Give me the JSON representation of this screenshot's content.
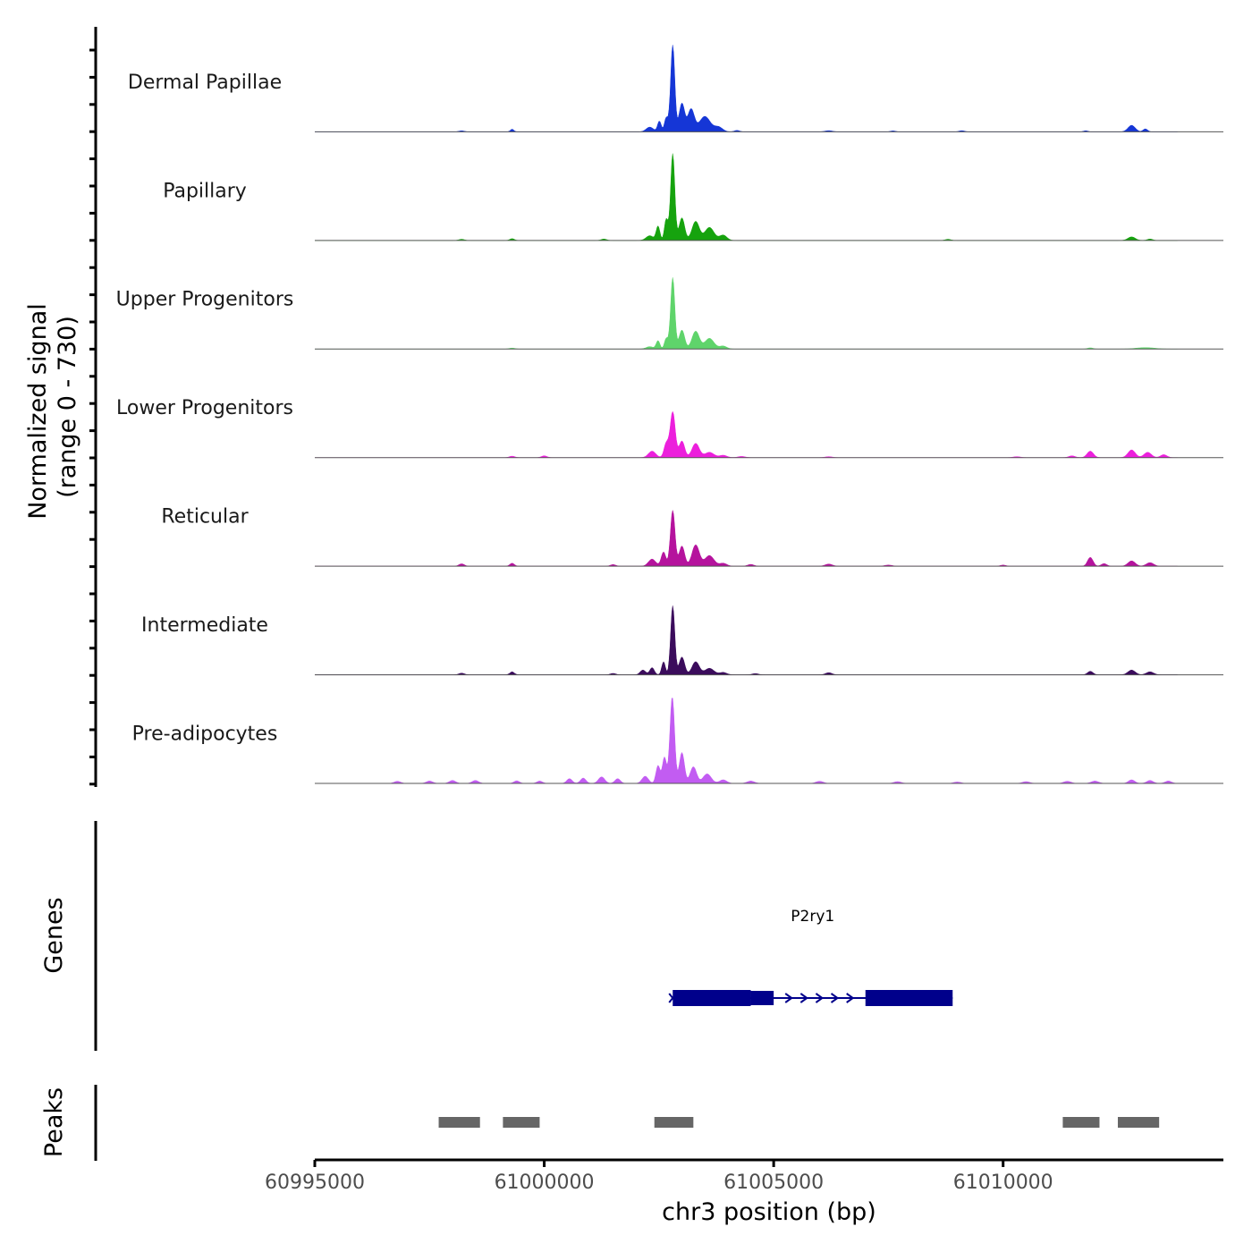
{
  "chart_data": {
    "type": "area",
    "chromosome": "chr3",
    "xlabel": "chr3 position (bp)",
    "ylabel_line1": "Normalized signal",
    "ylabel_line2": "(range 0 - 730)",
    "signal_range": [
      0,
      730
    ],
    "xlim": [
      60995000,
      61014800
    ],
    "x_ticks": [
      60995000,
      61000000,
      61005000,
      61010000
    ],
    "x_tick_labels": [
      "60995000",
      "61000000",
      "61005000",
      "61010000"
    ],
    "tracks": [
      {
        "name": "Dermal Papillae",
        "color": "#1536d6",
        "peaks": [
          [
            61002800,
            730,
            45
          ],
          [
            61002660,
            120,
            40
          ],
          [
            61002510,
            90,
            40
          ],
          [
            61003000,
            240,
            60
          ],
          [
            61003200,
            190,
            70
          ],
          [
            61003500,
            130,
            120
          ],
          [
            61003800,
            40,
            90
          ],
          [
            61002300,
            40,
            80
          ],
          [
            61012800,
            55,
            80
          ],
          [
            61013100,
            25,
            50
          ],
          [
            60999300,
            22,
            40
          ],
          [
            61004200,
            12,
            60
          ],
          [
            61006200,
            10,
            80
          ],
          [
            60998200,
            9,
            60
          ],
          [
            61009100,
            10,
            60
          ],
          [
            61007600,
            8,
            60
          ],
          [
            61011800,
            9,
            50
          ]
        ]
      },
      {
        "name": "Papillary",
        "color": "#16a30e",
        "peaks": [
          [
            61002800,
            730,
            45
          ],
          [
            61002660,
            180,
            40
          ],
          [
            61002480,
            120,
            40
          ],
          [
            61003000,
            190,
            60
          ],
          [
            61003300,
            160,
            80
          ],
          [
            61003600,
            110,
            100
          ],
          [
            61003900,
            45,
            80
          ],
          [
            61002300,
            40,
            80
          ],
          [
            61012800,
            30,
            80
          ],
          [
            61013200,
            12,
            60
          ],
          [
            61008800,
            10,
            60
          ],
          [
            61001300,
            12,
            60
          ],
          [
            60999300,
            15,
            50
          ],
          [
            60998200,
            10,
            60
          ]
        ]
      },
      {
        "name": "Upper Progenitors",
        "color": "#5fd46b",
        "peaks": [
          [
            61002800,
            600,
            45
          ],
          [
            61002660,
            90,
            40
          ],
          [
            61002480,
            70,
            40
          ],
          [
            61003000,
            160,
            60
          ],
          [
            61003300,
            150,
            80
          ],
          [
            61003600,
            90,
            100
          ],
          [
            61003900,
            25,
            80
          ],
          [
            61002300,
            20,
            80
          ],
          [
            61013100,
            12,
            200
          ],
          [
            61011900,
            10,
            60
          ],
          [
            60999300,
            8,
            60
          ]
        ]
      },
      {
        "name": "Lower Progenitors",
        "color": "#ec1fdc",
        "peaks": [
          [
            61002800,
            385,
            55
          ],
          [
            61002660,
            120,
            50
          ],
          [
            61003000,
            140,
            60
          ],
          [
            61003300,
            120,
            80
          ],
          [
            61003600,
            45,
            100
          ],
          [
            61002350,
            55,
            80
          ],
          [
            61003900,
            20,
            80
          ],
          [
            61011900,
            55,
            70
          ],
          [
            61012800,
            65,
            80
          ],
          [
            61013150,
            45,
            80
          ],
          [
            61013500,
            25,
            70
          ],
          [
            61011500,
            15,
            70
          ],
          [
            61000000,
            15,
            60
          ],
          [
            60999300,
            12,
            60
          ],
          [
            61006200,
            8,
            80
          ],
          [
            61004300,
            10,
            80
          ],
          [
            61010300,
            8,
            80
          ]
        ]
      },
      {
        "name": "Reticular",
        "color": "#b5139d",
        "peaks": [
          [
            61002800,
            470,
            50
          ],
          [
            61002600,
            120,
            50
          ],
          [
            61003000,
            170,
            60
          ],
          [
            61003300,
            180,
            80
          ],
          [
            61003600,
            90,
            100
          ],
          [
            61002350,
            60,
            80
          ],
          [
            61003900,
            25,
            80
          ],
          [
            61011900,
            75,
            60
          ],
          [
            61012200,
            22,
            60
          ],
          [
            61012800,
            45,
            80
          ],
          [
            61013200,
            30,
            80
          ],
          [
            60999300,
            25,
            50
          ],
          [
            60998200,
            20,
            60
          ],
          [
            61006200,
            18,
            80
          ],
          [
            61004500,
            15,
            70
          ],
          [
            61001500,
            14,
            60
          ],
          [
            61007500,
            10,
            80
          ],
          [
            61010000,
            10,
            60
          ]
        ]
      },
      {
        "name": "Intermediate",
        "color": "#3b0c5c",
        "peaks": [
          [
            61002800,
            580,
            45
          ],
          [
            61002600,
            110,
            40
          ],
          [
            61002350,
            60,
            50
          ],
          [
            61002150,
            40,
            60
          ],
          [
            61003000,
            150,
            60
          ],
          [
            61003300,
            110,
            80
          ],
          [
            61003600,
            55,
            100
          ],
          [
            61003900,
            20,
            80
          ],
          [
            61012800,
            40,
            80
          ],
          [
            61013200,
            25,
            80
          ],
          [
            61011900,
            30,
            60
          ],
          [
            60999300,
            25,
            50
          ],
          [
            60998200,
            14,
            60
          ],
          [
            61006200,
            18,
            70
          ],
          [
            61001500,
            12,
            60
          ],
          [
            61004600,
            10,
            70
          ]
        ]
      },
      {
        "name": "Pre-adipocytes",
        "color": "#c25cf2",
        "peaks": [
          [
            61002790,
            730,
            50
          ],
          [
            61002620,
            220,
            45
          ],
          [
            61002480,
            150,
            45
          ],
          [
            61003000,
            260,
            55
          ],
          [
            61003250,
            140,
            70
          ],
          [
            61003550,
            80,
            90
          ],
          [
            61002200,
            60,
            70
          ],
          [
            61001600,
            40,
            60
          ],
          [
            61001250,
            55,
            70
          ],
          [
            61000850,
            45,
            60
          ],
          [
            61000550,
            40,
            60
          ],
          [
            60999900,
            20,
            60
          ],
          [
            60999400,
            22,
            60
          ],
          [
            60998500,
            25,
            70
          ],
          [
            60998000,
            25,
            70
          ],
          [
            60997500,
            20,
            70
          ],
          [
            60996800,
            18,
            70
          ],
          [
            61003900,
            30,
            80
          ],
          [
            61004500,
            20,
            80
          ],
          [
            61006000,
            18,
            80
          ],
          [
            61007700,
            15,
            80
          ],
          [
            61009000,
            12,
            80
          ],
          [
            61010500,
            15,
            80
          ],
          [
            61011400,
            18,
            80
          ],
          [
            61012000,
            20,
            80
          ],
          [
            61012800,
            30,
            70
          ],
          [
            61013200,
            25,
            70
          ],
          [
            61013600,
            20,
            70
          ]
        ]
      }
    ],
    "genes_label": "Genes",
    "gene": {
      "name": "P2ry1",
      "start": 61002800,
      "end": 61008900,
      "strand": "+",
      "exons": [
        [
          61002800,
          61004500
        ],
        [
          61004500,
          61005000
        ],
        [
          61007000,
          61008900
        ]
      ],
      "color": "#00008b"
    },
    "peaks_label": "Peaks",
    "peaks": [
      [
        60997700,
        60998600
      ],
      [
        60999100,
        60999900
      ],
      [
        61002400,
        61003250
      ],
      [
        61011300,
        61012100
      ],
      [
        61012500,
        61013400
      ]
    ],
    "peaks_color": "#666666"
  }
}
